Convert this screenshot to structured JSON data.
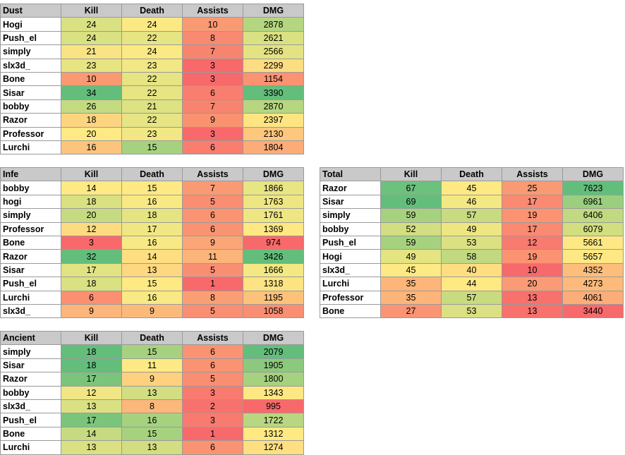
{
  "tables": [
    {
      "id": "dust",
      "title": "Dust",
      "headers": [
        "Kill",
        "Death",
        "Assists",
        "DMG"
      ],
      "rows": [
        {
          "name": "Hogi",
          "values": [
            24,
            24,
            10,
            2878
          ],
          "colors": [
            "#d9e182",
            "#fbe983",
            "#fa9a73",
            "#b5d680"
          ]
        },
        {
          "name": "Push_el",
          "values": [
            24,
            22,
            8,
            2621
          ],
          "colors": [
            "#d9e182",
            "#e6e483",
            "#f98a72",
            "#dae182"
          ]
        },
        {
          "name": "simply",
          "values": [
            21,
            24,
            7,
            2566
          ],
          "colors": [
            "#f8e484",
            "#fbe983",
            "#f7846e",
            "#e3e383"
          ]
        },
        {
          "name": "slx3d_",
          "values": [
            23,
            23,
            3,
            2299
          ],
          "colors": [
            "#e6e483",
            "#f1e784",
            "#f8696b",
            "#fddd82"
          ]
        },
        {
          "name": "Bone",
          "values": [
            10,
            22,
            3,
            1154
          ],
          "colors": [
            "#fa9a73",
            "#e6e483",
            "#f8696b",
            "#fa9372"
          ]
        },
        {
          "name": "Sisar",
          "values": [
            34,
            22,
            6,
            3390
          ],
          "colors": [
            "#63be7b",
            "#e6e483",
            "#f97e6f",
            "#63be7b"
          ]
        },
        {
          "name": "bobby",
          "values": [
            26,
            21,
            7,
            2870
          ],
          "colors": [
            "#c4da81",
            "#dde282",
            "#f7846e",
            "#b6d680"
          ]
        },
        {
          "name": "Razor",
          "values": [
            18,
            22,
            9,
            2397
          ],
          "colors": [
            "#fdd580",
            "#e6e483",
            "#fa926f",
            "#fee582"
          ]
        },
        {
          "name": "Professor",
          "values": [
            20,
            23,
            3,
            2130
          ],
          "colors": [
            "#feea84",
            "#f1e784",
            "#f8696b",
            "#fdc77d"
          ]
        },
        {
          "name": "Lurchi",
          "values": [
            16,
            15,
            6,
            1804
          ],
          "colors": [
            "#fdc47d",
            "#a6d27f",
            "#f97e6f",
            "#fbac78"
          ]
        }
      ]
    },
    {
      "id": "infe",
      "title": "Infe",
      "headers": [
        "Kill",
        "Death",
        "Assists",
        "DMG"
      ],
      "rows": [
        {
          "name": "bobby",
          "values": [
            14,
            15,
            7,
            1866
          ],
          "colors": [
            "#feea84",
            "#fee983",
            "#fa9a73",
            "#e8e583"
          ]
        },
        {
          "name": "hogi",
          "values": [
            18,
            16,
            5,
            1763
          ],
          "colors": [
            "#d9e182",
            "#f8e984",
            "#fa8e72",
            "#eee683"
          ]
        },
        {
          "name": "simply",
          "values": [
            20,
            18,
            6,
            1761
          ],
          "colors": [
            "#c6db81",
            "#e4e483",
            "#fa9372",
            "#eee683"
          ]
        },
        {
          "name": "Professor",
          "values": [
            12,
            17,
            6,
            1369
          ],
          "colors": [
            "#fddc81",
            "#f0e784",
            "#fa9372",
            "#fee883"
          ]
        },
        {
          "name": "Bone",
          "values": [
            3,
            16,
            9,
            974
          ],
          "colors": [
            "#f8696b",
            "#f8e984",
            "#fca576",
            "#f8696b"
          ]
        },
        {
          "name": "Razor",
          "values": [
            32,
            14,
            11,
            3426
          ],
          "colors": [
            "#63be7b",
            "#fddf82",
            "#fbb479",
            "#63be7b"
          ]
        },
        {
          "name": "Sisar",
          "values": [
            17,
            13,
            5,
            1666
          ],
          "colors": [
            "#e1e383",
            "#fed781",
            "#fa8e72",
            "#f3e884"
          ]
        },
        {
          "name": "Push_el",
          "values": [
            18,
            15,
            1,
            1318
          ],
          "colors": [
            "#d9e182",
            "#fee983",
            "#f8696b",
            "#fee383"
          ]
        },
        {
          "name": "Lurchi",
          "values": [
            6,
            16,
            8,
            1195
          ],
          "colors": [
            "#fa8f71",
            "#f8e984",
            "#fb9f75",
            "#fcc27c"
          ]
        },
        {
          "name": "slx3d_",
          "values": [
            9,
            9,
            5,
            1058
          ],
          "colors": [
            "#fcb57a",
            "#fcba7a",
            "#fa8e72",
            "#fa8e72"
          ]
        }
      ]
    },
    {
      "id": "total",
      "title": "Total",
      "headers": [
        "Kill",
        "Death",
        "Assists",
        "DMG"
      ],
      "rows": [
        {
          "name": "Razor",
          "values": [
            67,
            45,
            25,
            7623
          ],
          "colors": [
            "#6cc17c",
            "#fee983",
            "#fa9a73",
            "#63be7b"
          ]
        },
        {
          "name": "Sisar",
          "values": [
            69,
            46,
            17,
            6961
          ],
          "colors": [
            "#63be7b",
            "#f3e884",
            "#fa8a72",
            "#9bcf7f"
          ]
        },
        {
          "name": "simply",
          "values": [
            59,
            57,
            19,
            6406
          ],
          "colors": [
            "#a6d27f",
            "#c8db81",
            "#fb9373",
            "#c1d981"
          ]
        },
        {
          "name": "bobby",
          "values": [
            52,
            49,
            17,
            6079
          ],
          "colors": [
            "#d2de81",
            "#eee683",
            "#fa8a72",
            "#d3de81"
          ]
        },
        {
          "name": "Push_el",
          "values": [
            59,
            53,
            12,
            5661
          ],
          "colors": [
            "#a6d27f",
            "#dbe182",
            "#f97a6e",
            "#fee883"
          ]
        },
        {
          "name": "Hogi",
          "values": [
            49,
            58,
            19,
            5657
          ],
          "colors": [
            "#e4e483",
            "#c1d981",
            "#fb9373",
            "#fee883"
          ]
        },
        {
          "name": "slx3d_",
          "values": [
            45,
            40,
            10,
            4352
          ],
          "colors": [
            "#feea84",
            "#fede81",
            "#f8696b",
            "#fdbe7b"
          ]
        },
        {
          "name": "Lurchi",
          "values": [
            35,
            44,
            20,
            4273
          ],
          "colors": [
            "#fdb579",
            "#fee983",
            "#fb9b75",
            "#fdba7a"
          ]
        },
        {
          "name": "Professor",
          "values": [
            35,
            57,
            13,
            4061
          ],
          "colors": [
            "#fdb579",
            "#c8db81",
            "#f8716c",
            "#fcad78"
          ]
        },
        {
          "name": "Bone",
          "values": [
            27,
            53,
            13,
            3440
          ],
          "colors": [
            "#fb9474",
            "#dbe182",
            "#f8716c",
            "#f8696b"
          ]
        }
      ]
    },
    {
      "id": "ancient",
      "title": "Ancient",
      "headers": [
        "Kill",
        "Death",
        "Assists",
        "DMG"
      ],
      "rows": [
        {
          "name": "simply",
          "values": [
            18,
            15,
            6,
            2079
          ],
          "colors": [
            "#63be7b",
            "#a6d27f",
            "#fa9372",
            "#63be7b"
          ]
        },
        {
          "name": "Sisar",
          "values": [
            18,
            11,
            6,
            1905
          ],
          "colors": [
            "#63be7b",
            "#feea84",
            "#fa9372",
            "#8cc97e"
          ]
        },
        {
          "name": "Razor",
          "values": [
            17,
            9,
            5,
            1800
          ],
          "colors": [
            "#7bc47c",
            "#fdd17f",
            "#fa8e72",
            "#a6d27f"
          ]
        },
        {
          "name": "bobby",
          "values": [
            12,
            13,
            3,
            1343
          ],
          "colors": [
            "#f0e784",
            "#d2de81",
            "#f97a6e",
            "#fee883"
          ]
        },
        {
          "name": "slx3d_",
          "values": [
            13,
            8,
            2,
            995
          ],
          "colors": [
            "#dbe182",
            "#fcb77a",
            "#f8716c",
            "#f8696b"
          ]
        },
        {
          "name": "Push_el",
          "values": [
            17,
            16,
            3,
            1722
          ],
          "colors": [
            "#7bc47c",
            "#a6d27f",
            "#f97a6e",
            "#b8d780"
          ]
        },
        {
          "name": "Bone",
          "values": [
            14,
            15,
            1,
            1312
          ],
          "colors": [
            "#c6db81",
            "#a6d27f",
            "#f8696b",
            "#fee983"
          ]
        },
        {
          "name": "Lurchi",
          "values": [
            13,
            13,
            6,
            1274
          ],
          "colors": [
            "#dbe182",
            "#d2de81",
            "#fa9372",
            "#fedf82"
          ]
        }
      ]
    }
  ]
}
